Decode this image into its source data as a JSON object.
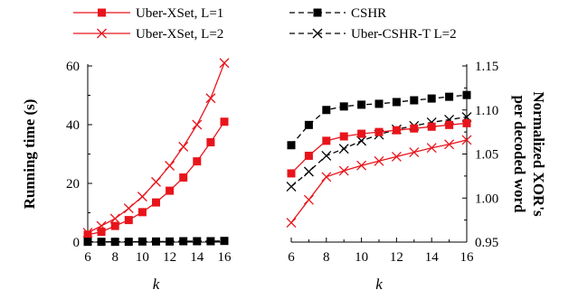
{
  "chart_data": [
    {
      "type": "line",
      "xlabel": "k",
      "ylabel": "Running time (s)",
      "x": [
        6,
        7,
        8,
        9,
        10,
        11,
        12,
        13,
        14,
        15,
        16
      ],
      "xlim": [
        6,
        16
      ],
      "ylim": [
        0,
        60
      ],
      "xticks": [
        6,
        8,
        10,
        12,
        14,
        16
      ],
      "yticks": [
        0,
        20,
        40,
        60
      ],
      "series": [
        {
          "name": "Uber-XSet, L=1",
          "color": "#e8141b",
          "marker": "square",
          "dash": false,
          "values": [
            2.5,
            3.5,
            5.5,
            7.5,
            10.2,
            13.5,
            17.5,
            22,
            27.5,
            34,
            41
          ]
        },
        {
          "name": "Uber-XSet, L=2",
          "color": "#e8141b",
          "marker": "x",
          "dash": false,
          "values": [
            3.2,
            5.5,
            8,
            11.5,
            15.5,
            20.5,
            26,
            32.5,
            40,
            49,
            61
          ]
        },
        {
          "name": "CSHR",
          "color": "#000000",
          "marker": "square",
          "dash": true,
          "values": [
            0.1,
            0.1,
            0.1,
            0.1,
            0.2,
            0.2,
            0.2,
            0.3,
            0.3,
            0.3,
            0.4
          ]
        }
      ]
    },
    {
      "type": "line",
      "xlabel": "k",
      "ylabel": "Normalized XOR's per decoded word",
      "ylabel_lines": [
        "Normalized XOR's",
        "per decoded word"
      ],
      "x": [
        6,
        7,
        8,
        9,
        10,
        11,
        12,
        13,
        14,
        15,
        16
      ],
      "xlim": [
        6,
        16
      ],
      "ylim": [
        0.95,
        1.15
      ],
      "xticks": [
        6,
        8,
        10,
        12,
        14,
        16
      ],
      "yticks": [
        "0.95",
        "1.00",
        "1.05",
        "1.10",
        "1.15"
      ],
      "series": [
        {
          "name": "CSHR",
          "color": "#000000",
          "marker": "square",
          "dash": true,
          "values": [
            1.06,
            1.083,
            1.1,
            1.104,
            1.106,
            1.107,
            1.109,
            1.111,
            1.113,
            1.115,
            1.117
          ]
        },
        {
          "name": "Uber-CSHR-T L=2",
          "color": "#000000",
          "marker": "x",
          "dash": true,
          "values": [
            1.013,
            1.03,
            1.048,
            1.056,
            1.065,
            1.072,
            1.078,
            1.082,
            1.086,
            1.089,
            1.092
          ]
        },
        {
          "name": "Uber-XSet, L=1",
          "color": "#e8141b",
          "marker": "square",
          "dash": false,
          "values": [
            1.028,
            1.048,
            1.065,
            1.07,
            1.073,
            1.075,
            1.077,
            1.079,
            1.081,
            1.083,
            1.085
          ]
        },
        {
          "name": "Uber-XSet, L=2",
          "color": "#e8141b",
          "marker": "x",
          "dash": false,
          "values": [
            0.972,
            0.998,
            1.024,
            1.031,
            1.037,
            1.042,
            1.047,
            1.052,
            1.057,
            1.061,
            1.066
          ]
        }
      ]
    }
  ],
  "legend": {
    "placement": "top",
    "entries": [
      {
        "label": "Uber-XSet, L=1",
        "color": "#e8141b",
        "marker": "square",
        "dash": false
      },
      {
        "label": "CSHR",
        "color": "#000000",
        "marker": "square",
        "dash": true
      },
      {
        "label": "Uber-XSet, L=2",
        "color": "#e8141b",
        "marker": "x",
        "dash": false
      },
      {
        "label": "Uber-CSHR-T L=2",
        "color": "#000000",
        "marker": "x",
        "dash": true
      }
    ]
  }
}
